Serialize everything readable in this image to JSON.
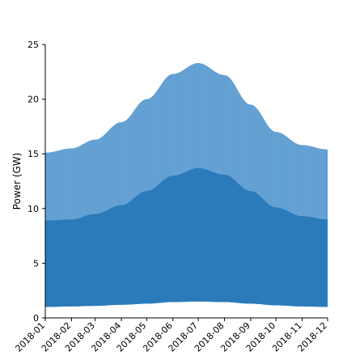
{
  "chart_data": {
    "type": "area",
    "title": "",
    "xlabel": "",
    "ylabel": "Power (GW)",
    "x_range": [
      "2018-01-01",
      "2018-12-01"
    ],
    "ylim": [
      0,
      25
    ],
    "x_ticks": [
      "2018-01",
      "2018-02",
      "2018-03",
      "2018-04",
      "2018-05",
      "2018-06",
      "2018-07",
      "2018-08",
      "2018-09",
      "2018-10",
      "2018-11",
      "2018-12"
    ],
    "y_ticks": [
      0,
      5,
      10,
      15,
      20,
      25
    ],
    "grid": false,
    "legend": "none",
    "daily_peak_envelope": {
      "x": [
        "2018-01-01",
        "2018-02-01",
        "2018-03-01",
        "2018-04-01",
        "2018-05-01",
        "2018-06-01",
        "2018-07-01",
        "2018-08-01",
        "2018-09-01",
        "2018-10-01",
        "2018-11-01",
        "2018-12-01"
      ],
      "max": [
        15.1,
        15.5,
        16.3,
        17.9,
        20.0,
        22.3,
        23.3,
        22.2,
        19.5,
        17.0,
        15.8,
        15.4
      ],
      "min": [
        1.0,
        1.05,
        1.1,
        1.2,
        1.3,
        1.45,
        1.5,
        1.45,
        1.3,
        1.15,
        1.05,
        1.0
      ]
    },
    "series": [
      {
        "x": [
          "2018-01-01",
          "2018-02-01",
          "2018-03-01",
          "2018-04-01",
          "2018-05-01",
          "2018-06-01",
          "2018-07-01",
          "2018-08-01",
          "2018-09-01",
          "2018-10-01",
          "2018-11-01",
          "2018-12-01"
        ],
        "values": [
          8.9,
          9.0,
          9.5,
          10.3,
          11.6,
          13.0,
          13.7,
          13.1,
          11.6,
          10.1,
          9.3,
          9.0
        ]
      }
    ],
    "colors": {
      "band": "#5b9bd0",
      "fill": "#2b7bbb",
      "tick": "#000000"
    }
  }
}
